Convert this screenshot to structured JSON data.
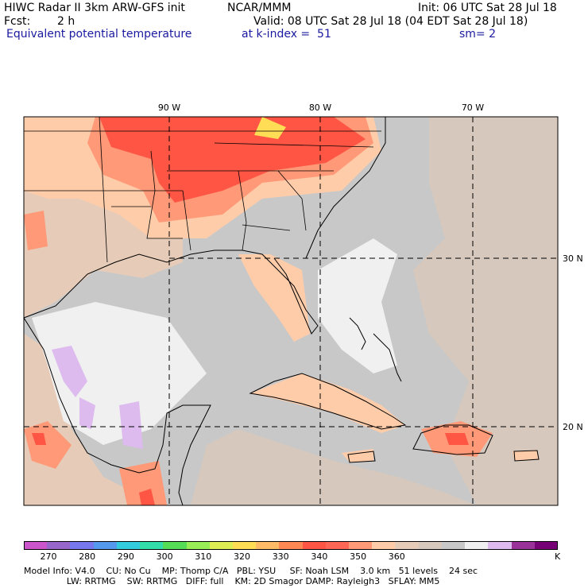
{
  "header": {
    "model": "HIWC Radar II 3km ARW-GFS init",
    "org": "NCAR/MMM",
    "init": "Init: 06 UTC Sat 28 Jul 18",
    "fcst_label": "Fcst:",
    "fcst_value": "2 h",
    "valid": "Valid: 08 UTC Sat 28 Jul 18 (04 EDT Sat 28 Jul 18)",
    "field": "Equivalent potential temperature",
    "kindex": "at k-index =  51",
    "smooth": "sm= 2"
  },
  "axes": {
    "lon_labels": [
      "90 W",
      "80 W",
      "70 W"
    ],
    "lat_labels": [
      "30 N",
      "20 N"
    ]
  },
  "colorbar": {
    "unit": "K",
    "labels": [
      "270",
      "280",
      "290",
      "300",
      "310",
      "320",
      "330",
      "340",
      "350",
      "360"
    ],
    "colors": [
      "#cc55cc",
      "#9966cc",
      "#7777ee",
      "#5599ee",
      "#33ccdd",
      "#33ddaa",
      "#55dd55",
      "#99ee55",
      "#ddee55",
      "#ffdd55",
      "#ffbb66",
      "#ff8855",
      "#ff5544",
      "#ff6655",
      "#ff9977",
      "#ffccaa",
      "#e6ccb8",
      "#d6c8bc",
      "#c8c8c8",
      "#f0f0f0",
      "#ddbbee",
      "#993399",
      "#770077"
    ]
  },
  "footer": {
    "line1": "Model Info: V4.0    CU: No Cu    MP: Thomp C/A   PBL: YSU     SF: Noah LSM    3.0 km   51 levels    24 sec",
    "line2": "                        LW: RRTMG    SW: RRTMG   DIFF: full    KM: 2D Smagor DAMP: Rayleigh3   SFLAY: MM5"
  }
}
